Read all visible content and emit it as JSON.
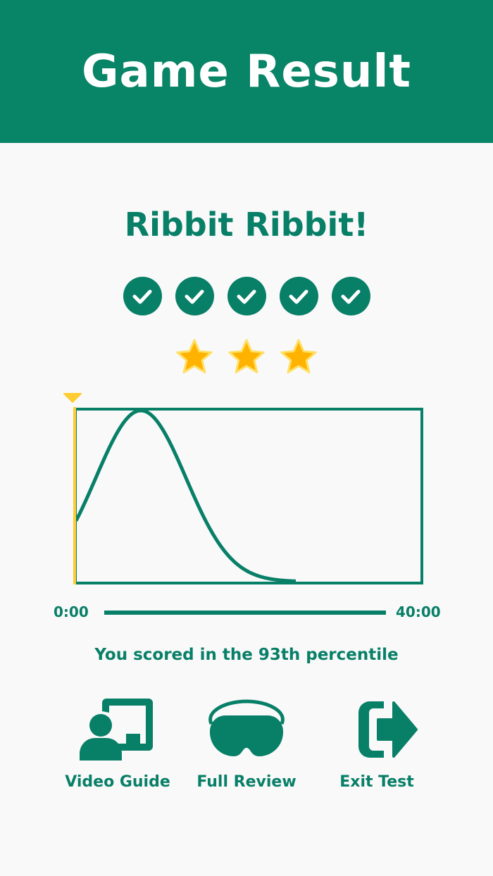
{
  "header": {
    "title": "Game Result"
  },
  "result": {
    "message": "Ribbit Ribbit!",
    "checks_completed": 5,
    "checks_total": 5,
    "stars_earned": 3,
    "stars_total": 3
  },
  "timeline": {
    "start_label": "0:00",
    "end_label": "40:00",
    "marker_position": 0
  },
  "score": {
    "percentile_text": "You scored in the 93th percentile"
  },
  "actions": [
    {
      "label": "Video Guide",
      "icon": "presentation-icon"
    },
    {
      "label": "Full Review",
      "icon": "vr-headset-icon"
    },
    {
      "label": "Exit Test",
      "icon": "exit-icon"
    }
  ],
  "colors": {
    "primary": "#088466",
    "marker": "#FFCC33",
    "star": "#FFB300"
  }
}
